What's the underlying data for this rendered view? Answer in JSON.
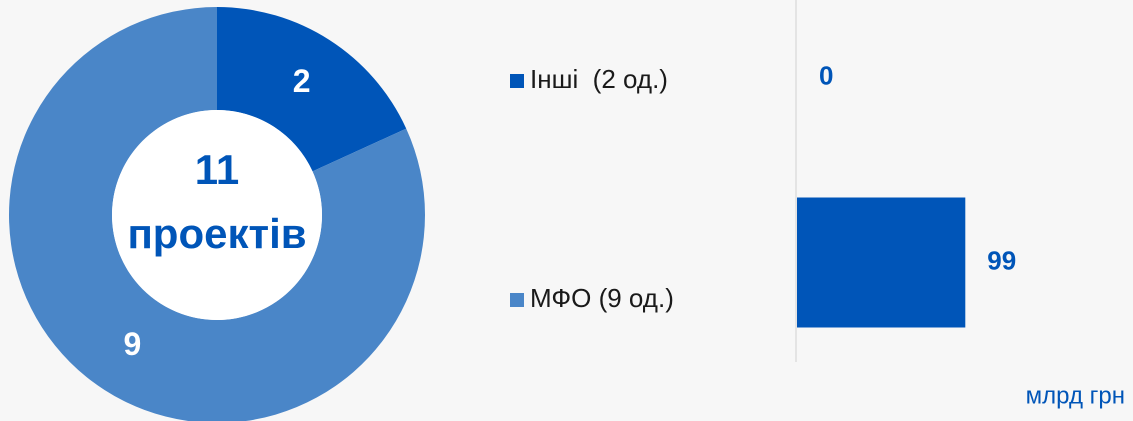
{
  "chart_data": [
    {
      "type": "pie",
      "categories": [
        "Інші  (2 од.)",
        "МФО (9 од.)"
      ],
      "values": [
        2,
        9
      ],
      "colors": [
        "#0055b8",
        "#4a86c8"
      ],
      "center_text": "11",
      "center_subtext": "проектів"
    },
    {
      "type": "bar",
      "values": [
        0,
        99
      ],
      "color": "#0055b8",
      "xlim": [
        0,
        200
      ],
      "unit_label": "млрд грн"
    }
  ]
}
